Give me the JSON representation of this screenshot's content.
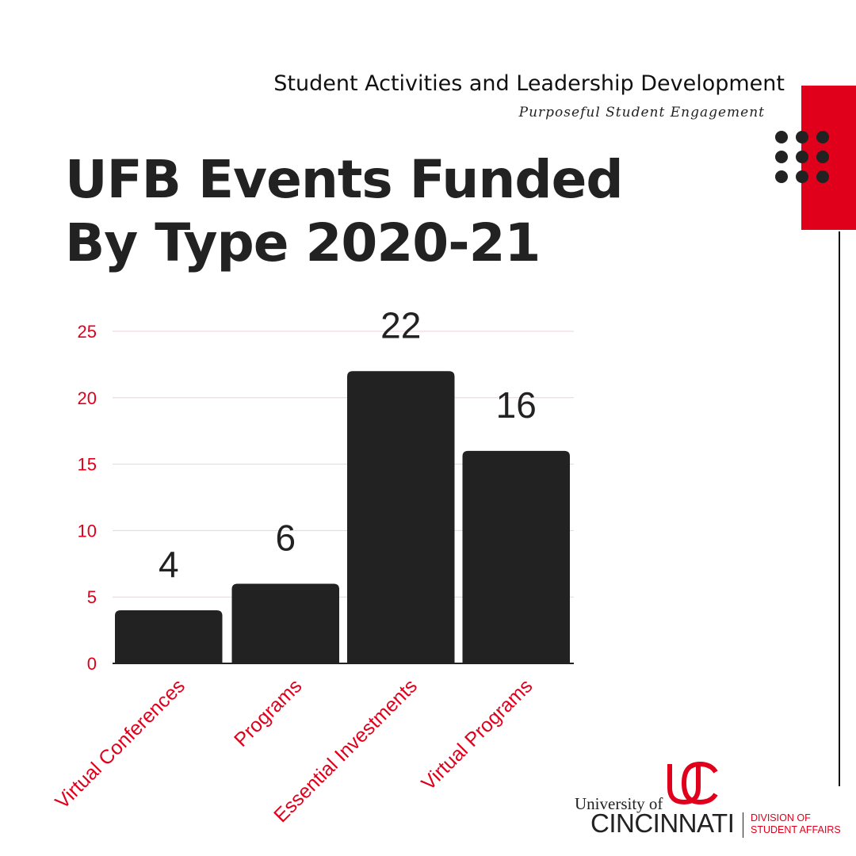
{
  "header": {
    "org_name": "Student Activities and Leadership Development",
    "tagline": "Purposeful Student Engagement"
  },
  "title_lines": [
    "UFB Events Funded",
    "By Type 2020-21"
  ],
  "logo": {
    "university_of": "University of",
    "cincinnati": "CINCINNATI",
    "division_line1": "DIVISION OF",
    "division_line2": "STUDENT AFFAIRS"
  },
  "colors": {
    "accent": "#e0001b",
    "bar": "#222222",
    "text": "#222222",
    "grid": "#f2d0d4"
  },
  "chart_data": {
    "type": "bar",
    "title": "UFB Events Funded By Type 2020-21",
    "categories": [
      "Virtual Conferences",
      "Programs",
      "Essential Investments",
      "Virtual Programs"
    ],
    "values": [
      4,
      6,
      22,
      16
    ],
    "data_labels": [
      "4",
      "6",
      "22",
      "16"
    ],
    "ylim": [
      0,
      25
    ],
    "yticks": [
      0,
      5,
      10,
      15,
      20,
      25
    ],
    "grid": true,
    "legend": "none"
  }
}
